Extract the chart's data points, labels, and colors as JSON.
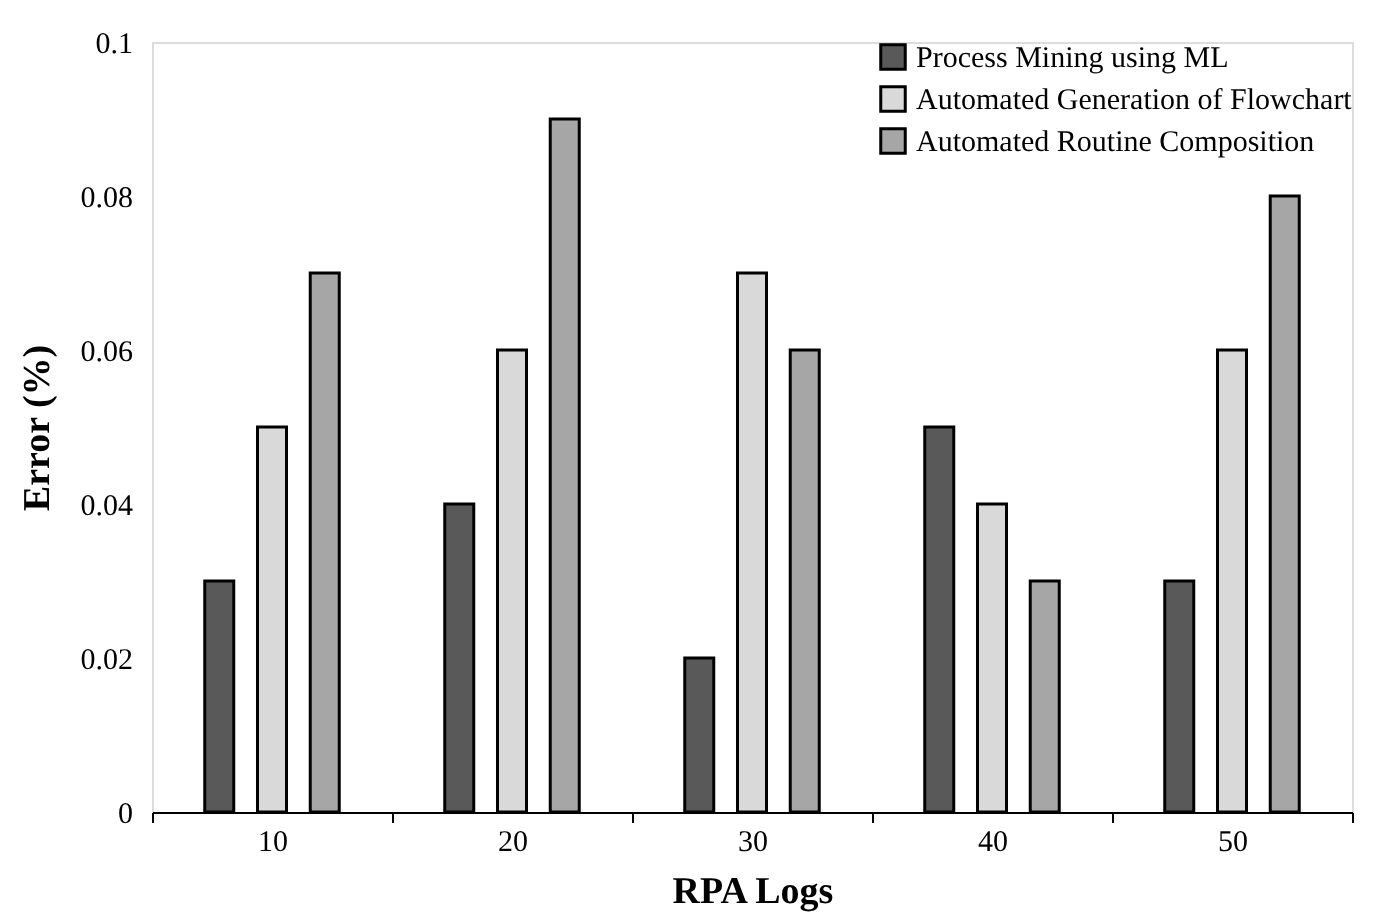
{
  "chart_data": {
    "type": "bar",
    "xlabel": "RPA Logs",
    "ylabel": "Error (%)",
    "categories": [
      "10",
      "20",
      "30",
      "40",
      "50"
    ],
    "series": [
      {
        "name": "Process Mining using ML",
        "color": "#595959",
        "values": [
          0.03,
          0.04,
          0.02,
          0.05,
          0.03
        ]
      },
      {
        "name": "Automated Generation of Flowchart",
        "color": "#d9d9d9",
        "values": [
          0.05,
          0.06,
          0.07,
          0.04,
          0.06
        ]
      },
      {
        "name": "Automated Routine Composition",
        "color": "#a6a6a6",
        "values": [
          0.07,
          0.09,
          0.06,
          0.03,
          0.08
        ]
      }
    ],
    "ylim": [
      0,
      0.1
    ],
    "yticks": [
      0,
      0.02,
      0.04,
      0.06,
      0.08,
      0.1
    ],
    "grid": false,
    "legend": "top right"
  }
}
